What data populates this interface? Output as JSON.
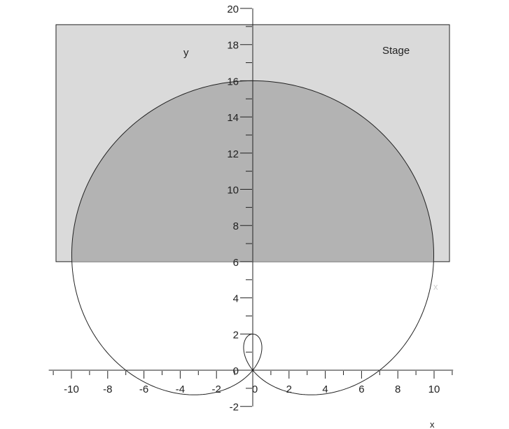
{
  "labels": {
    "stage": "Stage",
    "y_axis": "y",
    "x_axis_bottom": "x",
    "x_faint": "x"
  },
  "axes": {
    "x_range": [
      -11.25,
      11.05
    ],
    "y_range": [
      -2.0,
      20.0
    ],
    "x_ticks": [
      {
        "value": -10,
        "label": "-10"
      },
      {
        "value": -8,
        "label": "-8"
      },
      {
        "value": -6,
        "label": "-6"
      },
      {
        "value": -4,
        "label": "-4"
      },
      {
        "value": -2,
        "label": "-2"
      },
      {
        "value": 0,
        "label": "0"
      },
      {
        "value": 2,
        "label": "2"
      },
      {
        "value": 4,
        "label": "4"
      },
      {
        "value": 6,
        "label": "6"
      },
      {
        "value": 8,
        "label": "8"
      },
      {
        "value": 10,
        "label": "10"
      }
    ],
    "y_ticks": [
      {
        "value": -2,
        "label": "-2"
      },
      {
        "value": 0,
        "label": "0"
      },
      {
        "value": 2,
        "label": "2"
      },
      {
        "value": 4,
        "label": "4"
      },
      {
        "value": 6,
        "label": "6"
      },
      {
        "value": 8,
        "label": "8"
      },
      {
        "value": 10,
        "label": "10"
      },
      {
        "value": 12,
        "label": "12"
      },
      {
        "value": 14,
        "label": "14"
      },
      {
        "value": 16,
        "label": "16"
      },
      {
        "value": 18,
        "label": "18"
      },
      {
        "value": 20,
        "label": "20"
      }
    ]
  },
  "stage_rect": {
    "x_min": -10.85,
    "x_max": 10.85,
    "y_min": 6.0,
    "y_max": 19.1
  },
  "curve": {
    "type": "cardioid-like",
    "top_y": 16,
    "bottom_y": -2,
    "half_width": 10.4
  },
  "colors": {
    "stage_fill": "#dadada",
    "overlap_fill": "#b3b3b3",
    "line": "#222222",
    "faint_label": "#cfcfcf"
  }
}
